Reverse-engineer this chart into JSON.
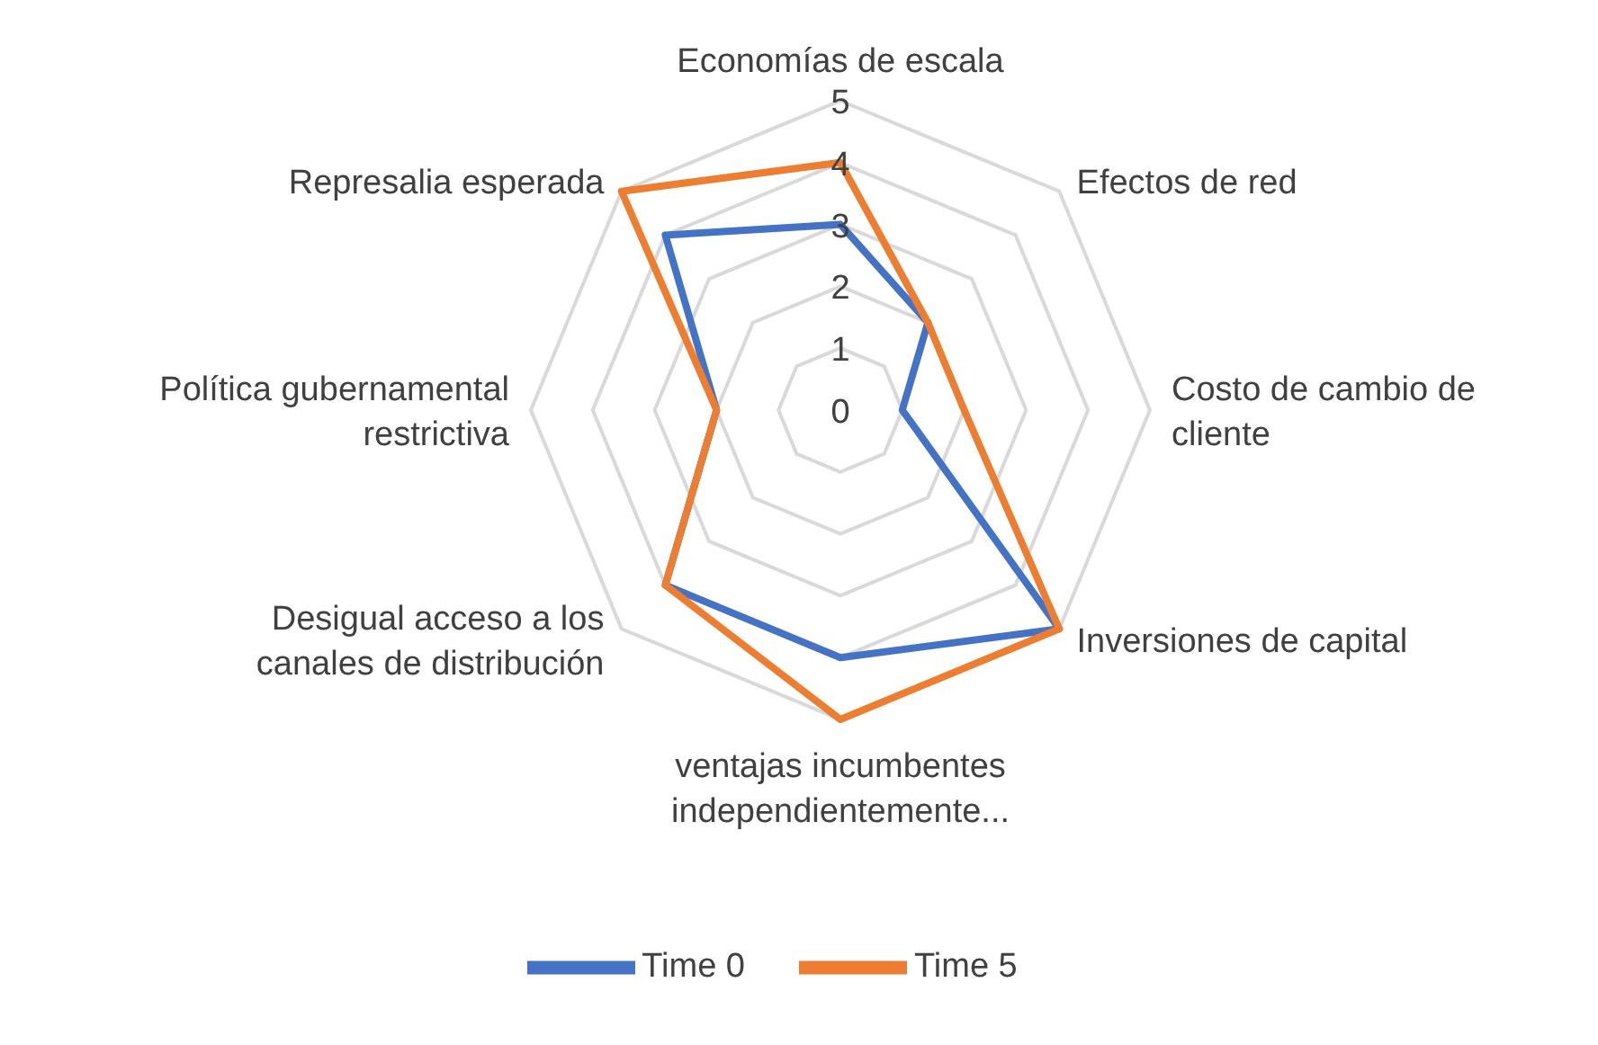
{
  "chart_data": {
    "type": "radar",
    "categories": [
      "Economías de escala",
      "Efectos de red",
      "Costo de cambio de cliente",
      "Inversiones de capital",
      "ventajas incumbentes independientemente...",
      "Desigual acceso a los canales de  distribución",
      "Política gubernamental restrictiva",
      "Represalia esperada"
    ],
    "series": [
      {
        "name": "Time 0",
        "color": "#4472c4",
        "values": [
          3,
          2,
          1,
          5,
          4,
          4,
          2,
          4
        ]
      },
      {
        "name": "Time 5",
        "color": "#ed7d31",
        "values": [
          4,
          2,
          2,
          5,
          5,
          4,
          2,
          5
        ]
      }
    ],
    "ylim": [
      0,
      5
    ],
    "yticks": [
      0,
      1,
      2,
      3,
      4,
      5
    ],
    "grid": true,
    "legend": "bottom",
    "marker": "none",
    "line_style": "solid"
  }
}
